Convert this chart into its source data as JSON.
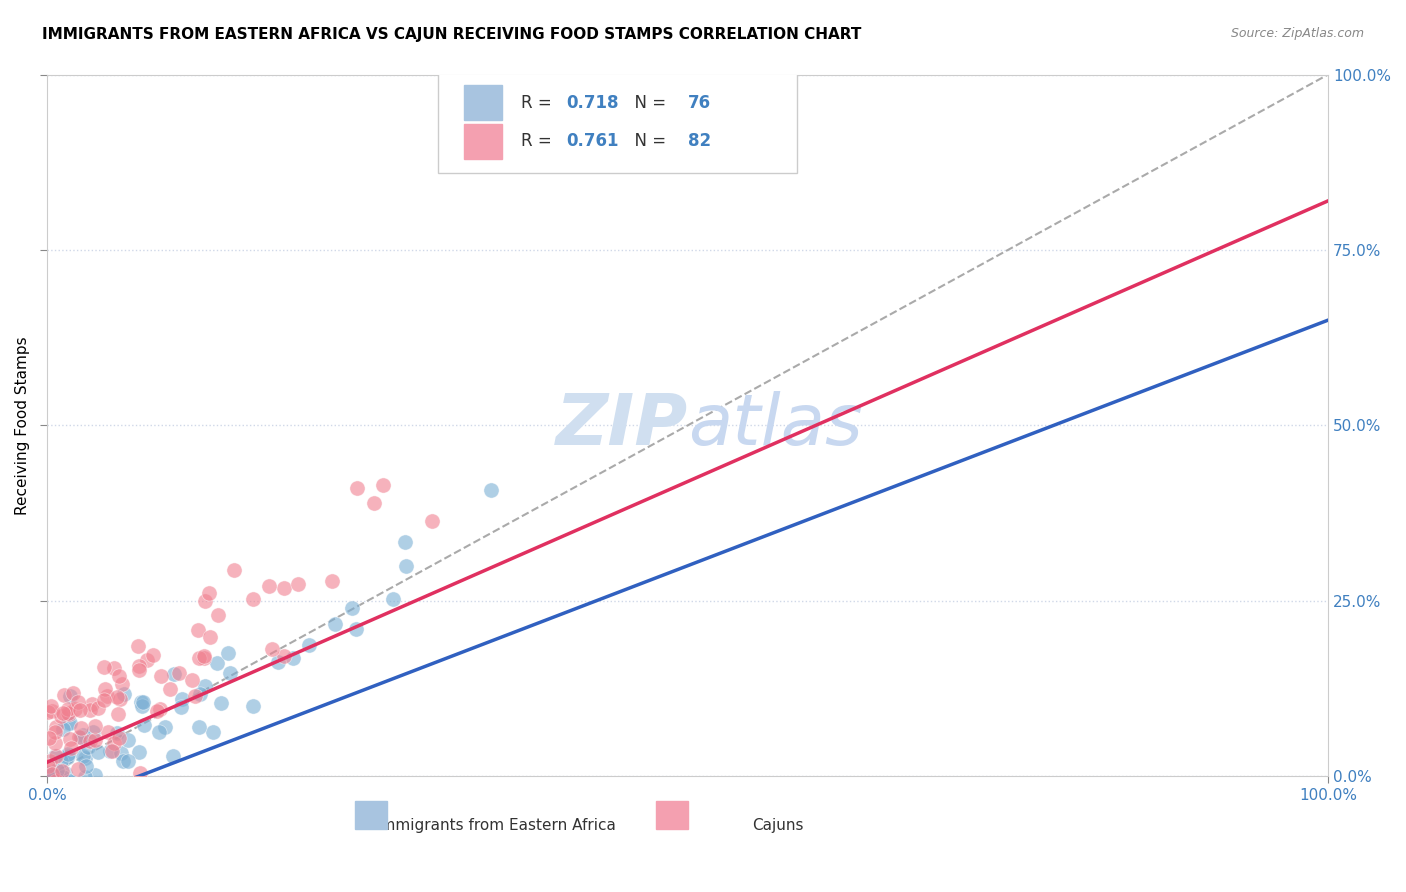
{
  "title": "IMMIGRANTS FROM EASTERN AFRICA VS CAJUN RECEIVING FOOD STAMPS CORRELATION CHART",
  "source": "Source: ZipAtlas.com",
  "xlabel": "",
  "ylabel": "Receiving Food Stamps",
  "x_tick_labels": [
    "0.0%",
    "100.0%"
  ],
  "y_tick_labels_right": [
    "0.0%",
    "25.0%",
    "50.0%",
    "75.0%",
    "100.0%"
  ],
  "legend_entries": [
    {
      "label": "R = 0.718   N = 76",
      "color": "#a8c4e0"
    },
    {
      "label": "R = 0.761   N = 82",
      "color": "#f4a0b0"
    }
  ],
  "series1_color": "#7bafd4",
  "series2_color": "#f08090",
  "series1_line_color": "#3060c0",
  "series2_line_color": "#e03060",
  "watermark": "ZIPAtlas",
  "watermark_color": "#d0dff0",
  "background_color": "#ffffff",
  "grid_color": "#d0d8e8",
  "title_fontsize": 11,
  "R1": 0.718,
  "N1": 76,
  "R2": 0.761,
  "N2": 82,
  "seed1": 42,
  "seed2": 99
}
